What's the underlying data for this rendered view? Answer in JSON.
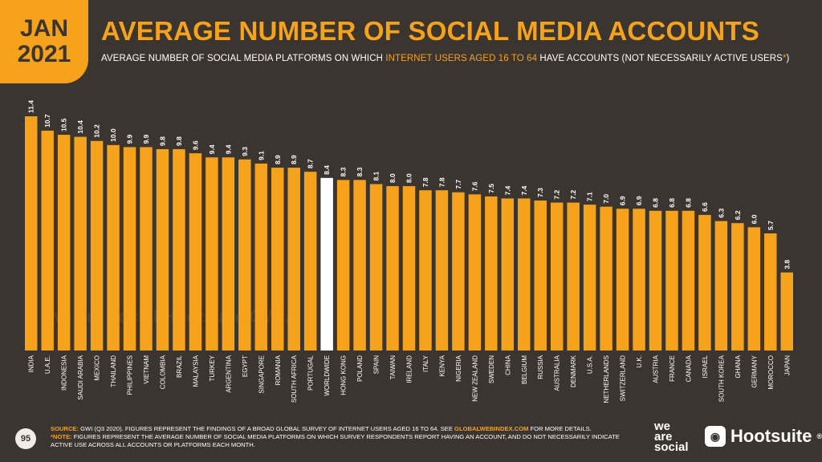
{
  "header": {
    "date_line1": "JAN",
    "date_line2": "2021",
    "title": "AVERAGE NUMBER OF SOCIAL MEDIA ACCOUNTS",
    "subtitle_pre": "AVERAGE NUMBER OF SOCIAL MEDIA PLATFORMS ON WHICH ",
    "subtitle_highlight": "INTERNET USERS AGED 16 TO 64",
    "subtitle_post": " HAVE ACCOUNTS (NOT NECESSARILY ACTIVE USERS",
    "subtitle_star": "*",
    "subtitle_end": ")"
  },
  "colors": {
    "background": "#3a3530",
    "accent": "#f7a21b",
    "highlight_bar": "#ffffff"
  },
  "chart_data": {
    "type": "bar",
    "highlight_category": "WORLDWIDE",
    "categories": [
      "INDIA",
      "U.A.E.",
      "INDONESIA",
      "SAUDI ARABIA",
      "MEXICO",
      "THAILAND",
      "PHILIPPINES",
      "VIETNAM",
      "COLOMBIA",
      "BRAZIL",
      "MALAYSIA",
      "TURKEY",
      "ARGENTINA",
      "EGYPT",
      "SINGAPORE",
      "ROMANIA",
      "SOUTH AFRICA",
      "PORTUGAL",
      "WORLDWIDE",
      "HONG KONG",
      "POLAND",
      "SPAIN",
      "TAIWAN",
      "IRELAND",
      "ITALY",
      "KENYA",
      "NIGERIA",
      "NEW ZEALAND",
      "SWEDEN",
      "CHINA",
      "BELGIUM",
      "RUSSIA",
      "AUSTRALIA",
      "DENMARK",
      "U.S.A.",
      "NETHERLANDS",
      "SWITZERLAND",
      "U.K.",
      "AUSTRIA",
      "FRANCE",
      "CANADA",
      "ISRAEL",
      "SOUTH KOREA",
      "GHANA",
      "GERMANY",
      "MOROCCO",
      "JAPAN"
    ],
    "values": [
      11.4,
      10.7,
      10.5,
      10.4,
      10.2,
      10.0,
      9.9,
      9.9,
      9.8,
      9.8,
      9.6,
      9.4,
      9.4,
      9.3,
      9.1,
      8.9,
      8.9,
      8.7,
      8.4,
      8.3,
      8.3,
      8.1,
      8.0,
      8.0,
      7.8,
      7.8,
      7.7,
      7.6,
      7.5,
      7.4,
      7.4,
      7.3,
      7.2,
      7.2,
      7.1,
      7.0,
      6.9,
      6.9,
      6.8,
      6.8,
      6.8,
      6.6,
      6.3,
      6.2,
      6.0,
      5.7,
      3.8
    ],
    "labels": [
      "11.4",
      "10.7",
      "10.5",
      "10.4",
      "10.2",
      "10.0",
      "9.9",
      "9.9",
      "9.8",
      "9.8",
      "9.6",
      "9.4",
      "9.4",
      "9.3",
      "9.1",
      "8.9",
      "8.9",
      "8.7",
      "8.4",
      "8.3",
      "8.3",
      "8.1",
      "8.0",
      "8.0",
      "7.8",
      "7.8",
      "7.7",
      "7.6",
      "7.5",
      "7.4",
      "7.4",
      "7.3",
      "7.2",
      "7.2",
      "7.1",
      "7.0",
      "6.9",
      "6.9",
      "6.8",
      "6.8",
      "6.8",
      "6.6",
      "6.3",
      "6.2",
      "6.0",
      "5.7",
      "3.8"
    ],
    "ylim": [
      0,
      11.4
    ]
  },
  "watermark": "we are social  Hootsuite  GWI.",
  "footer": {
    "page_number": "95",
    "source_label": "SOURCE:",
    "source_text": " GWI (Q3 2020). FIGURES REPRESENT THE FINDINGS OF A BROAD GLOBAL SURVEY OF INTERNET USERS AGED 16 TO 64. SEE ",
    "source_link": "GLOBALWEBINDEX.COM",
    "source_end": " FOR MORE DETAILS.",
    "note_label": "*NOTE:",
    "note_text": " FIGURES REPRESENT THE AVERAGE NUMBER OF SOCIAL MEDIA PLATFORMS ON WHICH SURVEY RESPONDENTS REPORT HAVING AN ACCOUNT, AND DO NOT NECESSARILY INDICATE ACTIVE USE ACROSS ALL ACCOUNTS OR PLATFORMS EACH MONTH.",
    "was_logo": [
      "we",
      "are",
      "social"
    ],
    "hootsuite_logo": "Hootsuite",
    "hootsuite_trademark": "®"
  }
}
